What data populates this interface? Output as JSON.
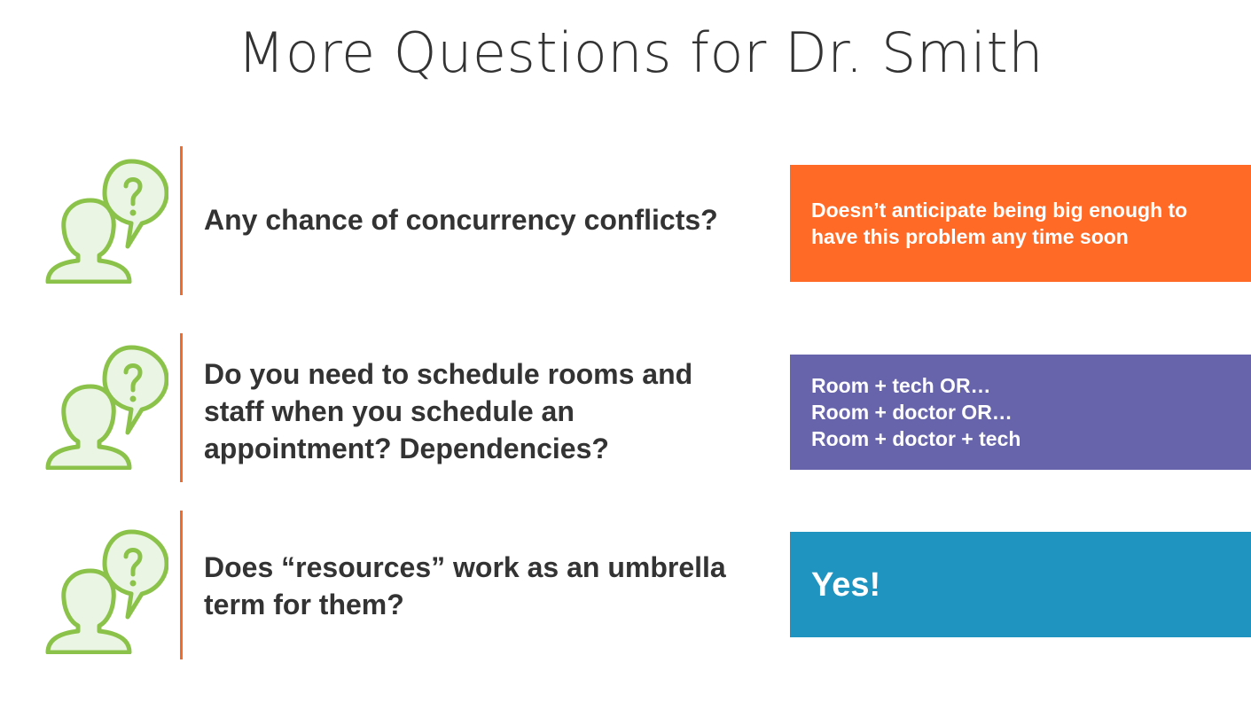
{
  "title": "More Questions for Dr. Smith",
  "colors": {
    "accent_line": "#f26b2a",
    "icon_stroke": "#8bc34a",
    "icon_fill": "#eaf5e3",
    "answer_orange": "#ff6a26",
    "answer_purple": "#6764ab",
    "answer_blue": "#2094c0"
  },
  "items": [
    {
      "icon": "person-question-icon",
      "question": "Any chance of concurrency conflicts?",
      "answer_color": "#ff6a26",
      "answer_lines": [
        "Doesn’t anticipate being big enough to",
        "have this problem any time soon"
      ]
    },
    {
      "icon": "person-question-icon",
      "question": "Do you need to schedule rooms and staff when you schedule an appointment? Dependencies?",
      "answer_color": "#6764ab",
      "answer_lines": [
        "Room + tech OR…",
        "Room + doctor OR…",
        "Room + doctor + tech"
      ]
    },
    {
      "icon": "person-question-icon",
      "question": "Does “resources” work as an umbrella term for them?",
      "answer_color": "#2094c0",
      "answer_lines": [
        "Yes!"
      ]
    }
  ]
}
